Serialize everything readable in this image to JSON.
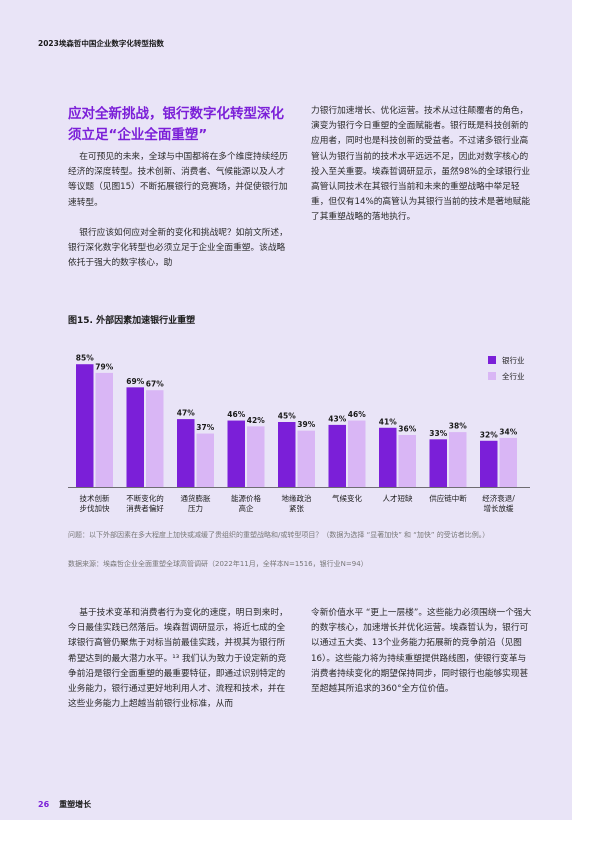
{
  "running_header": "2023埃森哲中国企业数字化转型指数",
  "section_heading": "应对全新挑战，银行数字化转型深化须立足“企业全面重塑”",
  "left_top_paragraphs": [
    "在可预见的未来，全球与中国都将在多个维度持续经历经济的深度转型。技术创新、消费者、气候能源以及人才等议题（见图15）不断拓展银行的竞赛场，并促使银行加速转型。",
    "银行应该如何应对全新的变化和挑战呢？如前文所述，银行深化数字化转型也必须立足于企业全面重塑。该战略依托于强大的数字核心，助"
  ],
  "right_top_paragraphs": [
    "力银行加速增长、优化运营。技术从过往颠覆者的角色，演变为银行今日重塑的全面赋能者。银行既是科技创新的应用者，同时也是科技创新的受益者。不过诸多银行业高管认为银行当前的技术水平远远不足，因此对数字核心的投入至关重要。埃森哲调研显示，虽然98%的全球银行业高管认同技术在其银行当前和未来的重塑战略中举足轻重，但仅有14%的高管认为其银行当前的技术是著地赋能了其重塑战略的落地执行。"
  ],
  "figure_title": "图15. 外部因素加速银行业重塑",
  "chart_data": {
    "type": "bar",
    "categories": [
      [
        "技术创新",
        "步伐加快"
      ],
      [
        "不断变化的",
        "消费者偏好"
      ],
      [
        "通货膨胀",
        "压力"
      ],
      [
        "能源价格",
        "高企"
      ],
      [
        "地缘政治",
        "紧张"
      ],
      [
        "气候变化"
      ],
      [
        "人才短缺"
      ],
      [
        "供应链中断"
      ],
      [
        "经济衰退/",
        "增长放缓"
      ]
    ],
    "series": [
      {
        "name": "银行业",
        "color": "#7b1fd8",
        "values": [
          85,
          69,
          47,
          46,
          45,
          43,
          41,
          33,
          32
        ]
      },
      {
        "name": "全行业",
        "color": "#d9b6f5",
        "values": [
          79,
          67,
          37,
          42,
          39,
          46,
          36,
          38,
          34
        ]
      }
    ],
    "value_suffix": "%",
    "ylim": [
      0,
      90
    ],
    "legend_position": "right",
    "grid": false
  },
  "chart_note": "问题：以下外部因素在多大程度上加快或减缓了贵组织的重塑战略和/或转型项目？（数据为选择 “显著加快” 和 “加快” 的受访者比例。）",
  "chart_source": "数据来源：埃森哲企业全面重塑全球高管调研（2022年11月，全样本N=1516，银行业N=94）",
  "left_bottom_paragraphs": [
    "基于技术变革和消费者行为变化的速度，明日到来时，今日最佳实践已然落后。埃森哲调研显示，将近七成的全球银行高管仍聚焦于对标当前最佳实践，并视其为银行所希望达到的最大潜力水平。¹³ 我们认为致力于设定新的竞争前沿是银行全面重塑的最重要特征，即通过识别特定的业务能力，银行通过更好地利用人才、流程和技术，并在这些业务能力上超越当前银行业标准，从而"
  ],
  "right_bottom_paragraphs": [
    "令新价值水平 “更上一层楼”。这些能力必须围绕一个强大的数字核心，加速增长并优化运营。埃森哲认为，银行可以通过五大类、13个业务能力拓展新的竞争前沿（见图16）。这些能力将为持续重塑提供路线图，使银行变革与消费者持续变化的期望保持同步，同时银行也能够实现甚至超越其所追求的360°全方位价值。"
  ],
  "footer": {
    "page_number": "26",
    "section": "重塑增长"
  }
}
